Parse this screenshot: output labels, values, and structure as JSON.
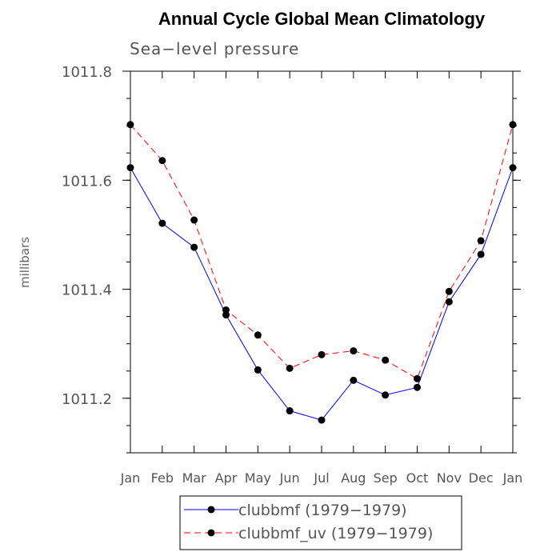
{
  "chart_data": {
    "type": "line",
    "title": "Annual Cycle Global Mean Climatology",
    "subtitle": "Sea−level pressure",
    "ylabel": "millibars",
    "xlabel": "",
    "categories": [
      "Jan",
      "Feb",
      "Mar",
      "Apr",
      "May",
      "Jun",
      "Jul",
      "Aug",
      "Sep",
      "Oct",
      "Nov",
      "Dec",
      "Jan"
    ],
    "ylim": [
      1011.1,
      1011.8
    ],
    "yticks": [
      "1011.2",
      "1011.4",
      "1011.6",
      "1011.8"
    ],
    "ytick_values": [
      1011.2,
      1011.4,
      1011.6,
      1011.8
    ],
    "grid": false,
    "legend_position": "bottom",
    "series": [
      {
        "name": "clubbmf (1979−1979)",
        "color": "#0000ff",
        "line_style": "solid",
        "marker": "filled-circle",
        "values": [
          1011.623,
          1011.521,
          1011.477,
          1011.353,
          1011.252,
          1011.177,
          1011.16,
          1011.233,
          1011.206,
          1011.22,
          1011.377,
          1011.464,
          1011.623
        ]
      },
      {
        "name": "clubbmf_uv (1979−1979)",
        "color": "#ff0000",
        "line_style": "dashed",
        "marker": "filled-circle",
        "values": [
          1011.702,
          1011.636,
          1011.527,
          1011.362,
          1011.316,
          1011.255,
          1011.28,
          1011.287,
          1011.27,
          1011.236,
          1011.396,
          1011.489,
          1011.702
        ]
      }
    ]
  }
}
